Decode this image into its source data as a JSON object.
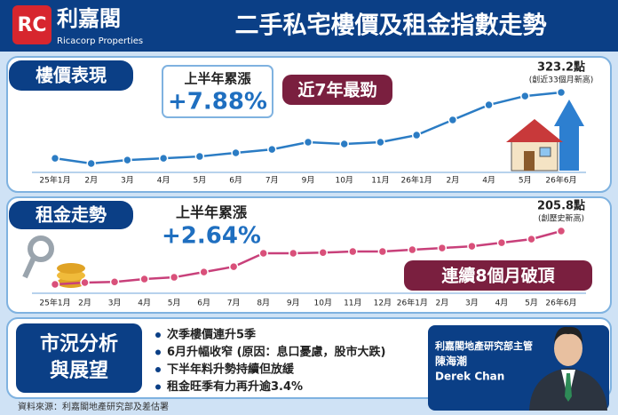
{
  "header": {
    "brand": "利嘉閣",
    "brand_en": "Ricacorp Properties",
    "title": "二手私宅樓價及租金指數走勢"
  },
  "chart_data": [
    {
      "type": "line",
      "section_title": "樓價表現",
      "summary_label": "上半年累漲",
      "summary_value": "+7.88%",
      "badge": "近7年最勁",
      "categories": [
        "25年1月",
        "2月",
        "3月",
        "4月",
        "5月",
        "6月",
        "7月",
        "9月",
        "10月",
        "11月",
        "26年1月",
        "2月",
        "4月",
        "5月",
        "26年6月"
      ],
      "values": [
        286.8,
        283.9,
        285.8,
        286.8,
        287.8,
        289.8,
        291.7,
        295.7,
        294.7,
        295.7,
        299.6,
        308.0,
        316.3,
        321.2,
        323.2
      ],
      "value_labels": [
        null,
        null,
        null,
        null,
        null,
        null,
        null,
        null,
        null,
        null,
        null,
        null,
        null,
        null,
        "323.2點"
      ],
      "note": "(創近33個月新高)",
      "color": "#2b7cc4"
    },
    {
      "type": "line",
      "section_title": "租金走勢",
      "summary_label": "上半年累漲",
      "summary_value": "+2.64%",
      "badge": "連續8個月破頂",
      "categories": [
        "25年1月",
        "2月",
        "3月",
        "4月",
        "5月",
        "6月",
        "7月",
        "8月",
        "9月",
        "10月",
        "11月",
        "12月",
        "26年1月",
        "2月",
        "3月",
        "4月",
        "5月",
        "26年6月"
      ],
      "values": [
        190.7,
        191.2,
        191.4,
        192.2,
        192.7,
        194.2,
        195.7,
        199.5,
        199.5,
        199.7,
        200.0,
        200.0,
        200.5,
        201.0,
        201.5,
        202.5,
        203.5,
        205.8
      ],
      "value_labels": [
        null,
        null,
        null,
        null,
        null,
        null,
        null,
        null,
        null,
        null,
        null,
        null,
        null,
        null,
        null,
        null,
        null,
        "205.8點"
      ],
      "note": "(創歷史新高)",
      "color": "#d9507a"
    }
  ],
  "outlook": {
    "title_1": "市況分析",
    "title_2": "與展望",
    "points": [
      "次季樓價連升5季",
      "6月升幅收窄 (原因：息口憂慮，股市大跌)",
      "下半年料升勢持續但放緩",
      "租金旺季有力再升逾3.4%"
    ]
  },
  "analyst": {
    "role": "利嘉閣地產研究部主管",
    "name": "陳海潮",
    "name_en": "Derek Chan"
  },
  "source": "資料來源：利嘉閣地產研究部及差估署"
}
